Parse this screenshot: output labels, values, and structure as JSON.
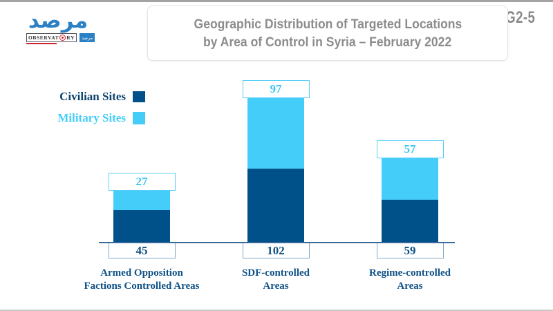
{
  "frame": {
    "code": "G2-5"
  },
  "logo": {
    "arabic_title": "مرصد",
    "observatory_left": "OBSERVAT",
    "observatory_right": "RY",
    "badge_arabic": "مرصد",
    "brand_blue": "#2c80c4",
    "brand_red": "#d42027"
  },
  "header": {
    "title_line1": "Geographic Distribution of Targeted Locations",
    "title_line2": "by Area of Control in Syria – February 2022"
  },
  "legend": {
    "items": [
      {
        "label": "Civilian Sites",
        "swatch_color": "#00518a",
        "label_color": "#0b436e"
      },
      {
        "label": "Military Sites",
        "swatch_color": "#45cdfa",
        "label_color": "#45cdfa"
      }
    ]
  },
  "chart_data": {
    "type": "bar",
    "stacked": true,
    "title": "Geographic Distribution of Targeted Locations by Area of Control in Syria – February 2022",
    "categories": [
      "Armed Opposition\nFactions Controlled Areas",
      "SDF-controlled\nAreas",
      "Regime-controlled\nAreas"
    ],
    "series": [
      {
        "name": "Civilian Sites",
        "color": "#00518a",
        "text_color": "#0d5083",
        "values": [
          45,
          102,
          59
        ]
      },
      {
        "name": "Military Sites",
        "color": "#45cdfa",
        "text_color": "#3cc6f2",
        "values": [
          27,
          97,
          57
        ]
      }
    ],
    "value_label_style": {
      "military": "white box with light-blue border above bar",
      "civilian": "white box with blue border below axis"
    },
    "legend_position": "upper-left",
    "grid": false,
    "ylim": [
      0,
      220
    ]
  }
}
